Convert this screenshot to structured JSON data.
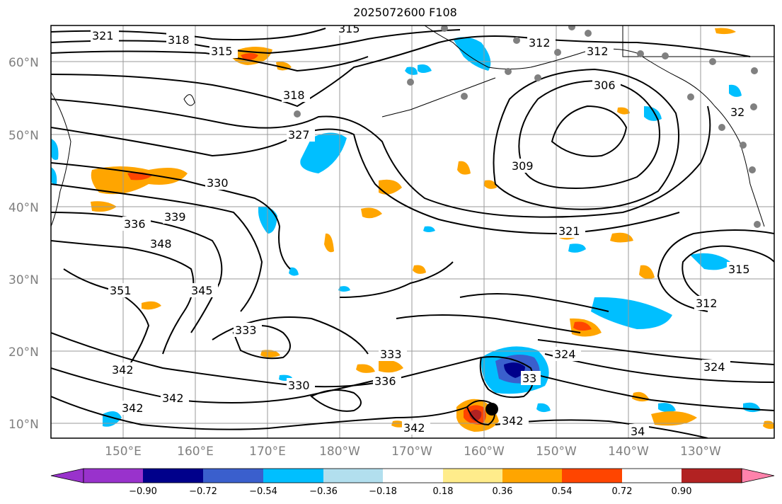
{
  "title": "2025072600 F108",
  "lon_labels": [
    "150°E",
    "160°E",
    "170°E",
    "180°W",
    "170°W",
    "160°W",
    "150°W",
    "140°W",
    "130°W"
  ],
  "lat_labels": [
    "60°N",
    "50°N",
    "40°N",
    "30°N",
    "20°N",
    "10°N"
  ],
  "colorbar": {
    "ticks": [
      "−0.90",
      "−0.72",
      "−0.54",
      "−0.36",
      "−0.18",
      "0.18",
      "0.36",
      "0.54",
      "0.72",
      "0.90"
    ],
    "colors": [
      "#9932CC",
      "#00008B",
      "#3A5FCD",
      "#00BFFF",
      "#B2DFEE",
      "#FFFFFF",
      "#FFEC8B",
      "#FFA500",
      "#FF4500",
      "#B22222",
      "#FF82AB"
    ]
  },
  "contour_labels": [
    "321",
    "318",
    "315",
    "315",
    "312",
    "312",
    "306",
    "318",
    "327",
    "309",
    "330",
    "336",
    "339",
    "348",
    "321",
    "315",
    "312",
    "351",
    "345",
    "333",
    "333",
    "342",
    "336",
    "330",
    "342",
    "342",
    "342",
    "342",
    "324",
    "324",
    "33",
    "34",
    "32"
  ]
}
